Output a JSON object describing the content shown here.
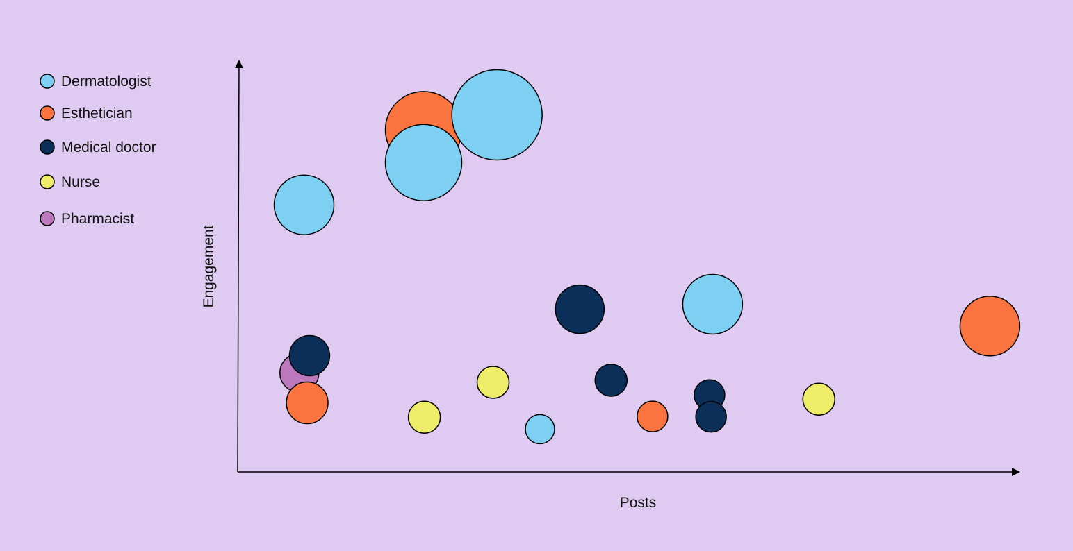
{
  "chart_data": {
    "type": "scatter",
    "subtype": "bubble",
    "title": "",
    "xlabel": "Posts",
    "ylabel": "Engagement",
    "x_ticks": "none",
    "y_ticks": "none",
    "grid": false,
    "legend_position": "top-left",
    "xlim": [
      0,
      100
    ],
    "ylim": [
      0,
      100
    ],
    "series": [
      {
        "name": "Dermatologist",
        "color": "#7ed0f2",
        "points": [
          {
            "x": 8.5,
            "y": 65,
            "size": 43
          },
          {
            "x": 23.8,
            "y": 75.3,
            "size": 55
          },
          {
            "x": 33.2,
            "y": 86.9,
            "size": 65
          },
          {
            "x": 38.7,
            "y": 10.4,
            "size": 21
          },
          {
            "x": 60.8,
            "y": 40.8,
            "size": 43
          }
        ]
      },
      {
        "name": "Esthetician",
        "color": "#fb743f",
        "points": [
          {
            "x": 23.8,
            "y": 83.3,
            "size": 55
          },
          {
            "x": 8.9,
            "y": 16.8,
            "size": 30
          },
          {
            "x": 53.1,
            "y": 13.5,
            "size": 22
          },
          {
            "x": 96.3,
            "y": 35.5,
            "size": 43
          }
        ]
      },
      {
        "name": "Medical doctor",
        "color": "#0b2f59",
        "points": [
          {
            "x": 9.2,
            "y": 28.3,
            "size": 29
          },
          {
            "x": 43.8,
            "y": 39.6,
            "size": 35
          },
          {
            "x": 47.8,
            "y": 22.3,
            "size": 23
          },
          {
            "x": 60.4,
            "y": 18.7,
            "size": 22
          },
          {
            "x": 60.6,
            "y": 13.4,
            "size": 22
          }
        ]
      },
      {
        "name": "Nurse",
        "color": "#eeec68",
        "points": [
          {
            "x": 23.9,
            "y": 13.3,
            "size": 23
          },
          {
            "x": 32.7,
            "y": 21.8,
            "size": 23
          },
          {
            "x": 74.4,
            "y": 17.7,
            "size": 23
          }
        ]
      },
      {
        "name": "Pharmacist",
        "color": "#be78bd",
        "points": [
          {
            "x": 7.9,
            "y": 24.1,
            "size": 28
          }
        ]
      }
    ]
  }
}
